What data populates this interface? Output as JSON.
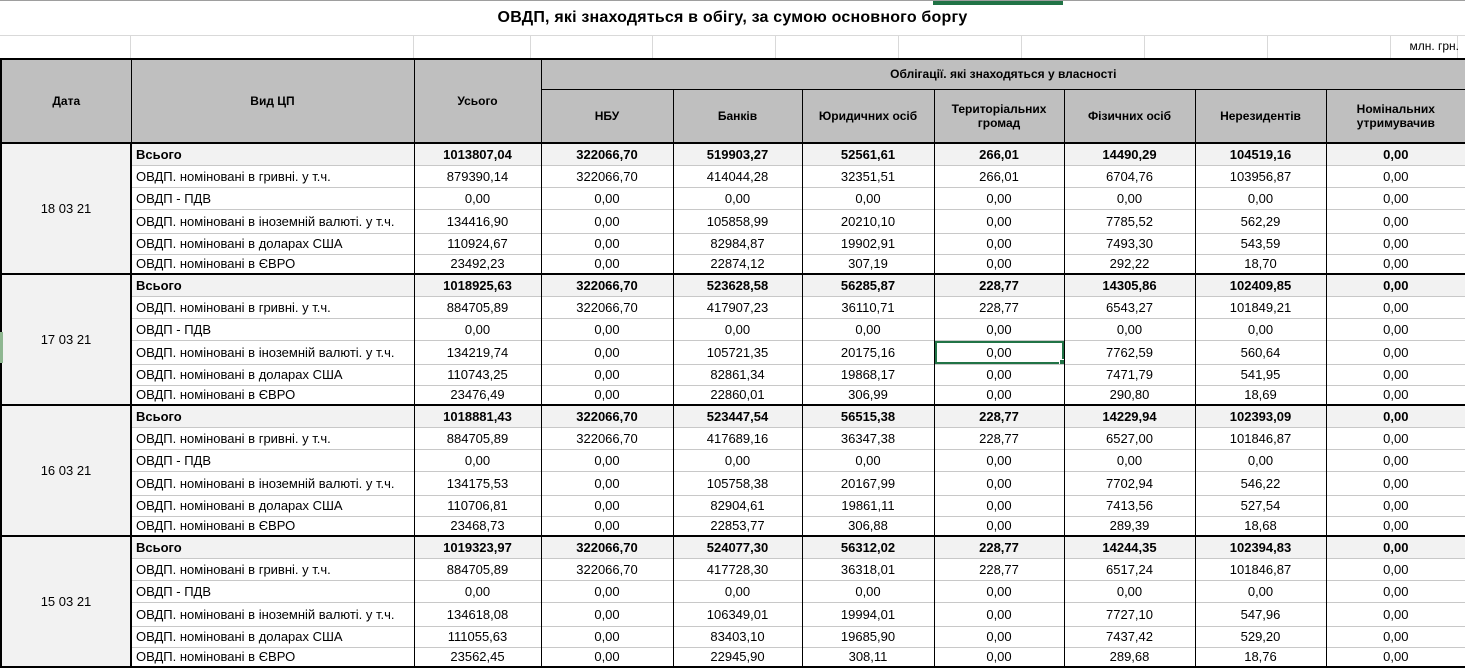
{
  "title": "ОВДП, які знаходяться в обігу, за сумою основного боргу",
  "units_label": "млн. грн.",
  "colors": {
    "selection_green": "#217346",
    "row_indicator_green": "#8fb791",
    "header_gray": "#bfbfbf",
    "total_row_gray": "#f2f2f2"
  },
  "table": {
    "headers": {
      "date": "Дата",
      "type": "Вид ЦП",
      "total": "Усього",
      "group": "Облігації. які знаходяться у власності",
      "owners": [
        "НБУ",
        "Банків",
        "Юридичних осіб",
        "Територіальних громад",
        "Фізичних осіб",
        "Нерезидентів",
        "Номінальних утримувачив"
      ]
    },
    "row_labels": [
      "Всього",
      "ОВДП. номіновані в гривні. у т.ч.",
      "ОВДП - ПДВ",
      "ОВДП. номіновані в іноземній валюті. у т.ч.",
      "ОВДП. номіновані в доларах США",
      "ОВДП. номіновані в ЄВРО"
    ],
    "groups": [
      {
        "date": "18 03 21",
        "rows": [
          [
            "1013807,04",
            "322066,70",
            "519903,27",
            "52561,61",
            "266,01",
            "14490,29",
            "104519,16",
            "0,00"
          ],
          [
            "879390,14",
            "322066,70",
            "414044,28",
            "32351,51",
            "266,01",
            "6704,76",
            "103956,87",
            "0,00"
          ],
          [
            "0,00",
            "0,00",
            "0,00",
            "0,00",
            "0,00",
            "0,00",
            "0,00",
            "0,00"
          ],
          [
            "134416,90",
            "0,00",
            "105858,99",
            "20210,10",
            "0,00",
            "7785,52",
            "562,29",
            "0,00"
          ],
          [
            "110924,67",
            "0,00",
            "82984,87",
            "19902,91",
            "0,00",
            "7493,30",
            "543,59",
            "0,00"
          ],
          [
            "23492,23",
            "0,00",
            "22874,12",
            "307,19",
            "0,00",
            "292,22",
            "18,70",
            "0,00"
          ]
        ]
      },
      {
        "date": "17 03 21",
        "rows": [
          [
            "1018925,63",
            "322066,70",
            "523628,58",
            "56285,87",
            "228,77",
            "14305,86",
            "102409,85",
            "0,00"
          ],
          [
            "884705,89",
            "322066,70",
            "417907,23",
            "36110,71",
            "228,77",
            "6543,27",
            "101849,21",
            "0,00"
          ],
          [
            "0,00",
            "0,00",
            "0,00",
            "0,00",
            "0,00",
            "0,00",
            "0,00",
            "0,00"
          ],
          [
            "134219,74",
            "0,00",
            "105721,35",
            "20175,16",
            "0,00",
            "7762,59",
            "560,64",
            "0,00"
          ],
          [
            "110743,25",
            "0,00",
            "82861,34",
            "19868,17",
            "0,00",
            "7471,79",
            "541,95",
            "0,00"
          ],
          [
            "23476,49",
            "0,00",
            "22860,01",
            "306,99",
            "0,00",
            "290,80",
            "18,69",
            "0,00"
          ]
        ]
      },
      {
        "date": "16 03 21",
        "rows": [
          [
            "1018881,43",
            "322066,70",
            "523447,54",
            "56515,38",
            "228,77",
            "14229,94",
            "102393,09",
            "0,00"
          ],
          [
            "884705,89",
            "322066,70",
            "417689,16",
            "36347,38",
            "228,77",
            "6527,00",
            "101846,87",
            "0,00"
          ],
          [
            "0,00",
            "0,00",
            "0,00",
            "0,00",
            "0,00",
            "0,00",
            "0,00",
            "0,00"
          ],
          [
            "134175,53",
            "0,00",
            "105758,38",
            "20167,99",
            "0,00",
            "7702,94",
            "546,22",
            "0,00"
          ],
          [
            "110706,81",
            "0,00",
            "82904,61",
            "19861,11",
            "0,00",
            "7413,56",
            "527,54",
            "0,00"
          ],
          [
            "23468,73",
            "0,00",
            "22853,77",
            "306,88",
            "0,00",
            "289,39",
            "18,68",
            "0,00"
          ]
        ]
      },
      {
        "date": "15 03 21",
        "rows": [
          [
            "1019323,97",
            "322066,70",
            "524077,30",
            "56312,02",
            "228,77",
            "14244,35",
            "102394,83",
            "0,00"
          ],
          [
            "884705,89",
            "322066,70",
            "417728,30",
            "36318,01",
            "228,77",
            "6517,24",
            "101846,87",
            "0,00"
          ],
          [
            "0,00",
            "0,00",
            "0,00",
            "0,00",
            "0,00",
            "0,00",
            "0,00",
            "0,00"
          ],
          [
            "134618,08",
            "0,00",
            "106349,01",
            "19994,01",
            "0,00",
            "7727,10",
            "547,96",
            "0,00"
          ],
          [
            "111055,63",
            "0,00",
            "83403,10",
            "19685,90",
            "0,00",
            "7437,42",
            "529,20",
            "0,00"
          ],
          [
            "23562,45",
            "0,00",
            "22945,90",
            "308,11",
            "0,00",
            "289,68",
            "18,76",
            "0,00"
          ]
        ]
      }
    ]
  },
  "selection": {
    "group_index": 1,
    "row_index": 3,
    "value_index": 4,
    "date": "17 03 21",
    "row_label": "ОВДП. номіновані в іноземній валюті. у т.ч.",
    "column": "Територіальних громад",
    "value": "0,00"
  }
}
